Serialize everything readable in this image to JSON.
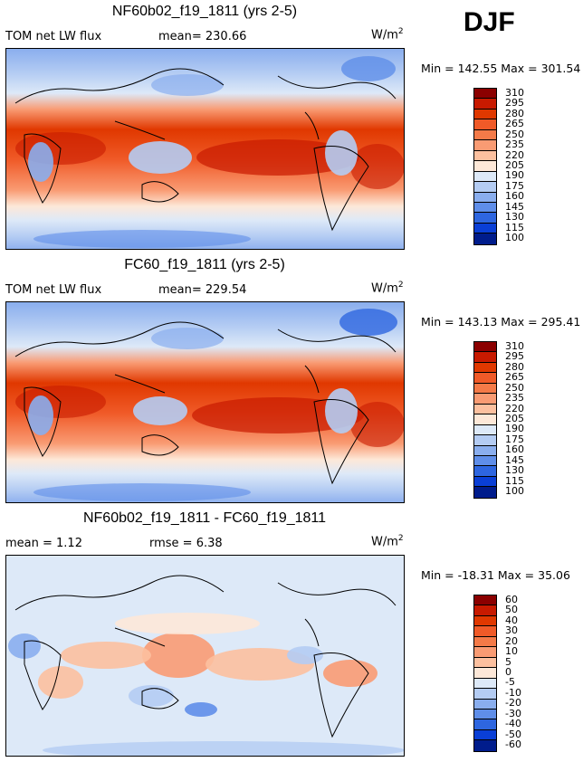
{
  "season": "DJF",
  "chart_data": [
    {
      "type": "heatmap",
      "title": "NF60b02_f19_1811 (yrs 2-5)",
      "left_label": "TOM net LW flux",
      "center_label": "mean=  230.66",
      "units": "W/m",
      "units_exp": "2",
      "stats": "Min = 142.55  Max = 301.54",
      "levels": [
        "310",
        "295",
        "280",
        "265",
        "250",
        "235",
        "220",
        "205",
        "190",
        "175",
        "160",
        "145",
        "130",
        "115",
        "100"
      ],
      "colors": [
        "#8b0000",
        "#c81a00",
        "#e03800",
        "#f05a28",
        "#f47a48",
        "#f99b73",
        "#fcc09f",
        "#fde8d8",
        "#dde9f8",
        "#b4ccf3",
        "#8aaeee",
        "#5f8ee9",
        "#2e66e0",
        "#0a3fd6",
        "#001c8c"
      ]
    },
    {
      "type": "heatmap",
      "title": "FC60_f19_1811 (yrs 2-5)",
      "left_label": "TOM net LW flux",
      "center_label": "mean=  229.54",
      "units": "W/m",
      "units_exp": "2",
      "stats": "Min = 143.13  Max = 295.41",
      "levels": [
        "310",
        "295",
        "280",
        "265",
        "250",
        "235",
        "220",
        "205",
        "190",
        "175",
        "160",
        "145",
        "130",
        "115",
        "100"
      ],
      "colors": [
        "#8b0000",
        "#c81a00",
        "#e03800",
        "#f05a28",
        "#f47a48",
        "#f99b73",
        "#fcc09f",
        "#fde8d8",
        "#dde9f8",
        "#b4ccf3",
        "#8aaeee",
        "#5f8ee9",
        "#2e66e0",
        "#0a3fd6",
        "#001c8c"
      ]
    },
    {
      "type": "heatmap",
      "title": "NF60b02_f19_1811 - FC60_f19_1811",
      "left_label": "mean =    1.12",
      "center_label": "rmse =    6.38",
      "units": "W/m",
      "units_exp": "2",
      "stats": "Min = -18.31  Max =   35.06",
      "levels": [
        "60",
        "50",
        "40",
        "30",
        "20",
        "10",
        "5",
        "0",
        "-5",
        "-10",
        "-20",
        "-30",
        "-40",
        "-50",
        "-60"
      ],
      "colors": [
        "#8b0000",
        "#c81a00",
        "#e03800",
        "#f05a28",
        "#f47a48",
        "#f99b73",
        "#fcc09f",
        "#fde8d8",
        "#dde9f8",
        "#b4ccf3",
        "#8aaeee",
        "#5f8ee9",
        "#2e66e0",
        "#0a3fd6",
        "#001c8c"
      ]
    }
  ]
}
